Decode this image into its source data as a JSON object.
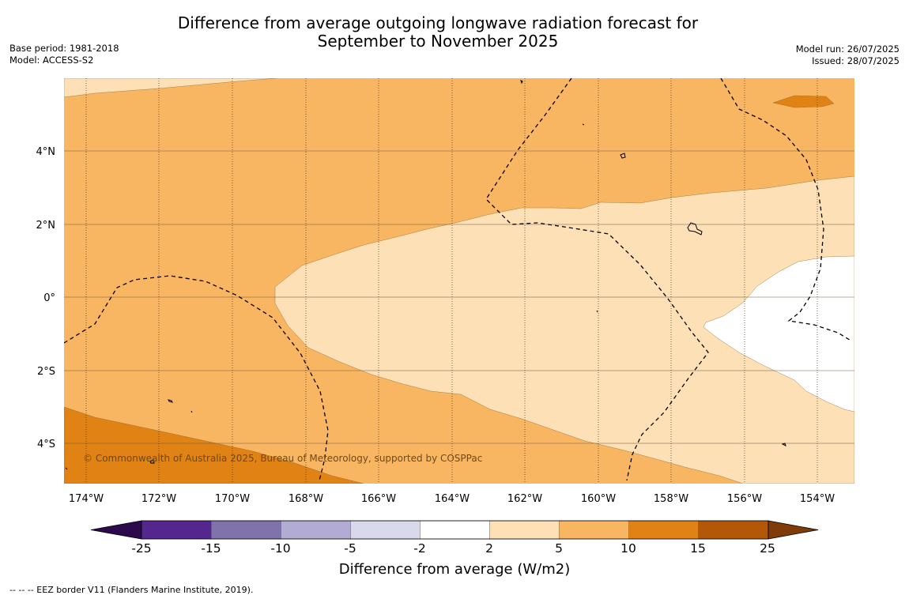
{
  "title_line1": "Difference from average outgoing longwave radiation forecast for",
  "title_line2": "September to November 2025",
  "base_period": "Base period: 1981-2018",
  "model": "Model: ACCESS-S2",
  "model_run": "Model run: 26/07/2025",
  "issued": "Issued: 28/07/2025",
  "copyright": "© Commonwealth of Australia 2025, Bureau of Meteorology, supported by COSPPac",
  "lat_labels": [
    "4°N",
    "2°N",
    "0°",
    "2°S",
    "4°S"
  ],
  "lon_labels": [
    "174°W",
    "172°W",
    "170°W",
    "168°W",
    "166°W",
    "164°W",
    "162°W",
    "160°W",
    "158°W",
    "156°W",
    "154°W"
  ],
  "colorbar": {
    "title": "Difference from average (W/m2)",
    "ticks": [
      "-25",
      "-15",
      "-10",
      "-5",
      "-2",
      "2",
      "5",
      "10",
      "15",
      "25"
    ],
    "colors": [
      "#2d0a4e",
      "#54278f",
      "#8073ac",
      "#b2abd2",
      "#d8daeb",
      "#ffffff",
      "#fde0b6",
      "#f9b662",
      "#e08214",
      "#b35806",
      "#7f3b08"
    ]
  },
  "map_colors": {
    "class_2_5": "#fde0b6",
    "class_5_10": "#f9b662",
    "class_10_15": "#e08214",
    "class_neg2_2": "#ffffff"
  },
  "footnote": "--  --  -- EEZ border V11 (Flanders Marine Institute, 2019)."
}
